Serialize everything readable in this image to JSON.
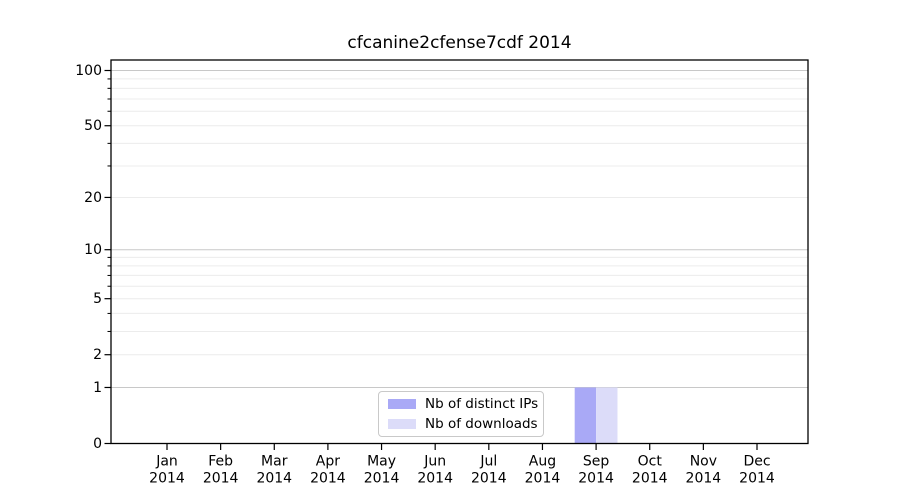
{
  "title": "cfcanine2cfense7cdf 2014",
  "chart_data": {
    "type": "bar",
    "title": "cfcanine2cfense7cdf 2014",
    "x_categories": [
      "Jan",
      "Feb",
      "Mar",
      "Apr",
      "May",
      "Jun",
      "Jul",
      "Aug",
      "Sep",
      "Oct",
      "Nov",
      "Dec"
    ],
    "x_year_label": "2014",
    "series": [
      {
        "name": "Nb of distinct IPs",
        "color": "#a9a9f6",
        "values": [
          0,
          0,
          0,
          0,
          0,
          0,
          0,
          0,
          1,
          0,
          0,
          0
        ]
      },
      {
        "name": "Nb of downloads",
        "color": "#dcdcf9",
        "values": [
          0,
          0,
          0,
          0,
          0,
          0,
          0,
          0,
          1,
          0,
          0,
          0
        ]
      }
    ],
    "y_scale": "log1p",
    "ylim": [
      0,
      100
    ],
    "y_tick_labels": [
      0,
      1,
      2,
      5,
      10,
      20,
      50,
      100
    ],
    "y_major_gridlines": [
      1,
      10,
      100
    ],
    "y_minor_gridlines": [
      2,
      3,
      4,
      5,
      6,
      7,
      8,
      9,
      20,
      30,
      40,
      50,
      60,
      70,
      80,
      90
    ],
    "grid_on": true,
    "legend_position": "lower center",
    "colors": {
      "grid_major": "#c8c8c8",
      "grid_minor": "#ececec",
      "axis_frame": "#000000",
      "tick": "#000000",
      "text": "#000000",
      "background": "#ffffff"
    }
  }
}
